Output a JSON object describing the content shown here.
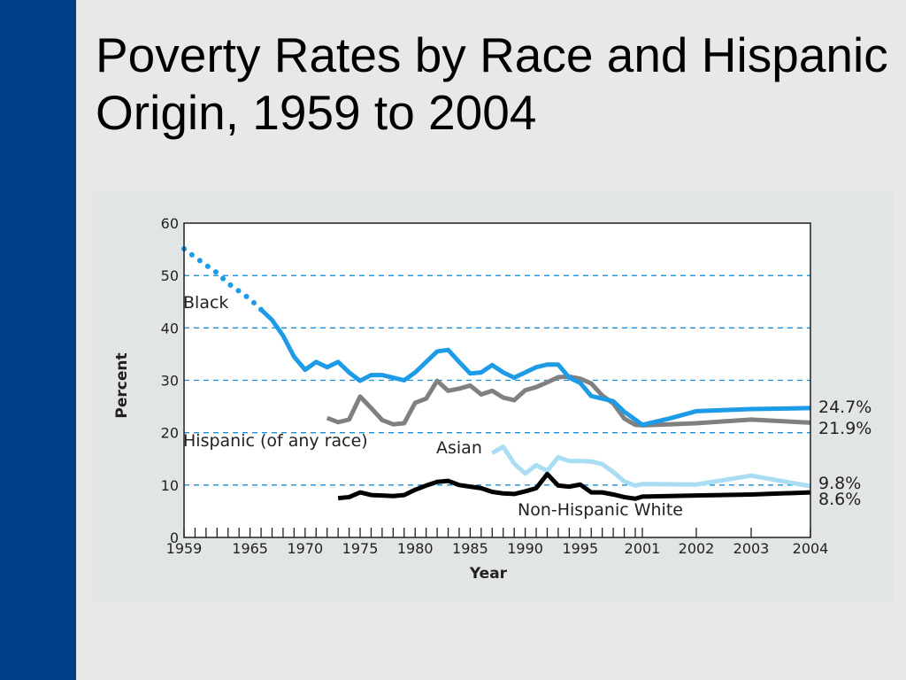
{
  "slide": {
    "title": "Poverty Rates by Race and Hispanic Origin, 1959 to 2004"
  },
  "colors": {
    "sidebar": "#003f87",
    "background": "#e8e8e8",
    "panel": "#e1e5e6",
    "grid": "#1d8fd6",
    "black_series": "#1e9be6",
    "hispanic_series": "#808080",
    "asian_series": "#a9ddf3",
    "white_series": "#000000"
  },
  "chart_data": {
    "type": "line",
    "xlabel": "Year",
    "ylabel": "Percent",
    "ylim": [
      0,
      60
    ],
    "yticks": [
      0,
      10,
      20,
      30,
      40,
      50,
      60
    ],
    "grid": "dashed horizontal lines at 10, 20, 30, 40, 50",
    "xtick_labels": [
      "1959",
      "1965",
      "1970",
      "1975",
      "1980",
      "1985",
      "1990",
      "1995",
      "2001",
      "2002",
      "2003",
      "2004"
    ],
    "series": [
      {
        "name": "Black",
        "color": "#1e9be6",
        "dotted_until": 1966,
        "end_label": "24.7%",
        "points": [
          [
            1959,
            55.1
          ],
          [
            1960,
            53.5
          ],
          [
            1961,
            52.0
          ],
          [
            1962,
            50.5
          ],
          [
            1963,
            48.5
          ],
          [
            1964,
            47.0
          ],
          [
            1965,
            45.5
          ],
          [
            1966,
            43.5
          ],
          [
            1967,
            41.5
          ],
          [
            1968,
            38.5
          ],
          [
            1969,
            34.5
          ],
          [
            1970,
            32.0
          ],
          [
            1971,
            33.5
          ],
          [
            1972,
            32.5
          ],
          [
            1973,
            33.5
          ],
          [
            1974,
            31.5
          ],
          [
            1975,
            29.9
          ],
          [
            1976,
            31.0
          ],
          [
            1977,
            31.0
          ],
          [
            1978,
            30.5
          ],
          [
            1979,
            30.0
          ],
          [
            1980,
            31.5
          ],
          [
            1981,
            33.5
          ],
          [
            1982,
            35.5
          ],
          [
            1983,
            35.8
          ],
          [
            1984,
            33.5
          ],
          [
            1985,
            31.3
          ],
          [
            1986,
            31.5
          ],
          [
            1987,
            32.9
          ],
          [
            1988,
            31.5
          ],
          [
            1989,
            30.5
          ],
          [
            1990,
            31.5
          ],
          [
            1991,
            32.5
          ],
          [
            1992,
            33.0
          ],
          [
            1993,
            33.0
          ],
          [
            1994,
            30.5
          ],
          [
            1995,
            29.5
          ],
          [
            1996,
            27.0
          ],
          [
            1997,
            26.5
          ],
          [
            1998,
            26.0
          ],
          [
            1999,
            24.0
          ],
          [
            2000,
            22.5
          ],
          [
            2001,
            21.5
          ],
          [
            2001.5,
            22.7
          ],
          [
            2002,
            24.1
          ],
          [
            2003,
            24.5
          ],
          [
            2004,
            24.7
          ]
        ]
      },
      {
        "name": "Hispanic (of any race)",
        "color": "#808080",
        "end_label": "21.9%",
        "points": [
          [
            1972,
            22.8
          ],
          [
            1973,
            22.0
          ],
          [
            1974,
            22.5
          ],
          [
            1975,
            26.9
          ],
          [
            1976,
            24.7
          ],
          [
            1977,
            22.4
          ],
          [
            1978,
            21.6
          ],
          [
            1979,
            21.8
          ],
          [
            1980,
            25.7
          ],
          [
            1981,
            26.5
          ],
          [
            1982,
            29.9
          ],
          [
            1983,
            28.0
          ],
          [
            1984,
            28.4
          ],
          [
            1985,
            29.0
          ],
          [
            1986,
            27.3
          ],
          [
            1987,
            28.0
          ],
          [
            1988,
            26.7
          ],
          [
            1989,
            26.2
          ],
          [
            1990,
            28.1
          ],
          [
            1991,
            28.7
          ],
          [
            1992,
            29.6
          ],
          [
            1993,
            30.6
          ],
          [
            1994,
            30.7
          ],
          [
            1995,
            30.3
          ],
          [
            1996,
            29.4
          ],
          [
            1997,
            27.1
          ],
          [
            1998,
            25.6
          ],
          [
            1999,
            22.7
          ],
          [
            2000,
            21.5
          ],
          [
            2001,
            21.4
          ],
          [
            2002,
            21.8
          ],
          [
            2003,
            22.5
          ],
          [
            2004,
            21.9
          ]
        ]
      },
      {
        "name": "Asian",
        "color": "#a9ddf3",
        "end_label": "9.8%",
        "points": [
          [
            1987,
            16.1
          ],
          [
            1988,
            17.3
          ],
          [
            1989,
            14.1
          ],
          [
            1990,
            12.2
          ],
          [
            1991,
            13.8
          ],
          [
            1992,
            12.7
          ],
          [
            1993,
            15.3
          ],
          [
            1994,
            14.6
          ],
          [
            1995,
            14.6
          ],
          [
            1996,
            14.5
          ],
          [
            1997,
            14.0
          ],
          [
            1998,
            12.5
          ],
          [
            1999,
            10.7
          ],
          [
            2000,
            9.9
          ],
          [
            2001,
            10.2
          ],
          [
            2002,
            10.1
          ],
          [
            2003,
            11.8
          ],
          [
            2004,
            9.8
          ]
        ]
      },
      {
        "name": "Non-Hispanic White",
        "color": "#000000",
        "end_label": "8.6%",
        "points": [
          [
            1973,
            7.5
          ],
          [
            1974,
            7.7
          ],
          [
            1975,
            8.6
          ],
          [
            1976,
            8.1
          ],
          [
            1977,
            8.0
          ],
          [
            1978,
            7.9
          ],
          [
            1979,
            8.1
          ],
          [
            1980,
            9.1
          ],
          [
            1981,
            9.9
          ],
          [
            1982,
            10.6
          ],
          [
            1983,
            10.8
          ],
          [
            1984,
            10.0
          ],
          [
            1985,
            9.7
          ],
          [
            1986,
            9.4
          ],
          [
            1987,
            8.7
          ],
          [
            1988,
            8.4
          ],
          [
            1989,
            8.3
          ],
          [
            1990,
            8.8
          ],
          [
            1991,
            9.4
          ],
          [
            1992,
            12.1
          ],
          [
            1993,
            9.9
          ],
          [
            1994,
            9.7
          ],
          [
            1995,
            10.1
          ],
          [
            1996,
            8.6
          ],
          [
            1997,
            8.6
          ],
          [
            1998,
            8.2
          ],
          [
            1999,
            7.7
          ],
          [
            2000,
            7.4
          ],
          [
            2001,
            7.8
          ],
          [
            2002,
            8.0
          ],
          [
            2003,
            8.2
          ],
          [
            2004,
            8.6
          ]
        ]
      }
    ]
  }
}
